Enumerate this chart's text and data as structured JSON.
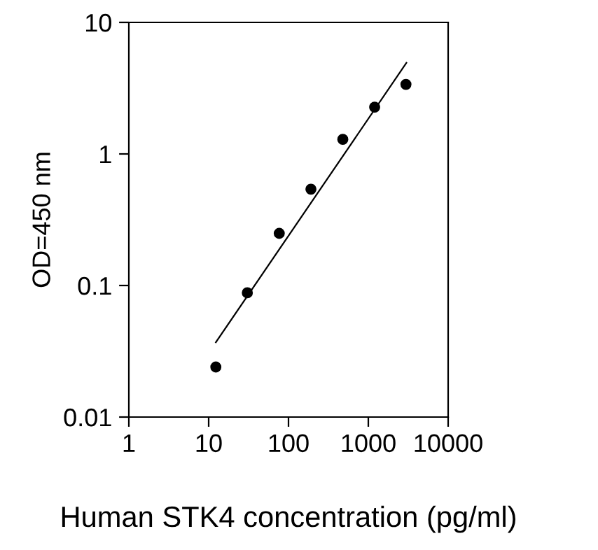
{
  "chart_data": {
    "type": "scatter",
    "xlabel": "Human STK4 concentration (pg/ml)",
    "ylabel": "OD=450 nm",
    "log": "xy",
    "xlim": [
      1,
      10000
    ],
    "ylim": [
      0.01,
      10
    ],
    "xticks": [
      1,
      10,
      100,
      1000,
      10000
    ],
    "yticks": [
      0.01,
      0.1,
      1,
      10
    ],
    "grid": false,
    "legend": false,
    "marker": "circle",
    "series": [
      {
        "color": "#000000",
        "x": [
          12.3,
          30.5,
          76.6,
          191,
          479,
          1200,
          2960
        ],
        "values": [
          0.024,
          0.088,
          0.249,
          0.54,
          1.29,
          2.27,
          3.38
        ]
      },
      {
        "type": "line",
        "marker": "none",
        "color": "#000000",
        "x": [
          12.3,
          3000
        ],
        "values": [
          0.037,
          4.92
        ]
      }
    ]
  }
}
